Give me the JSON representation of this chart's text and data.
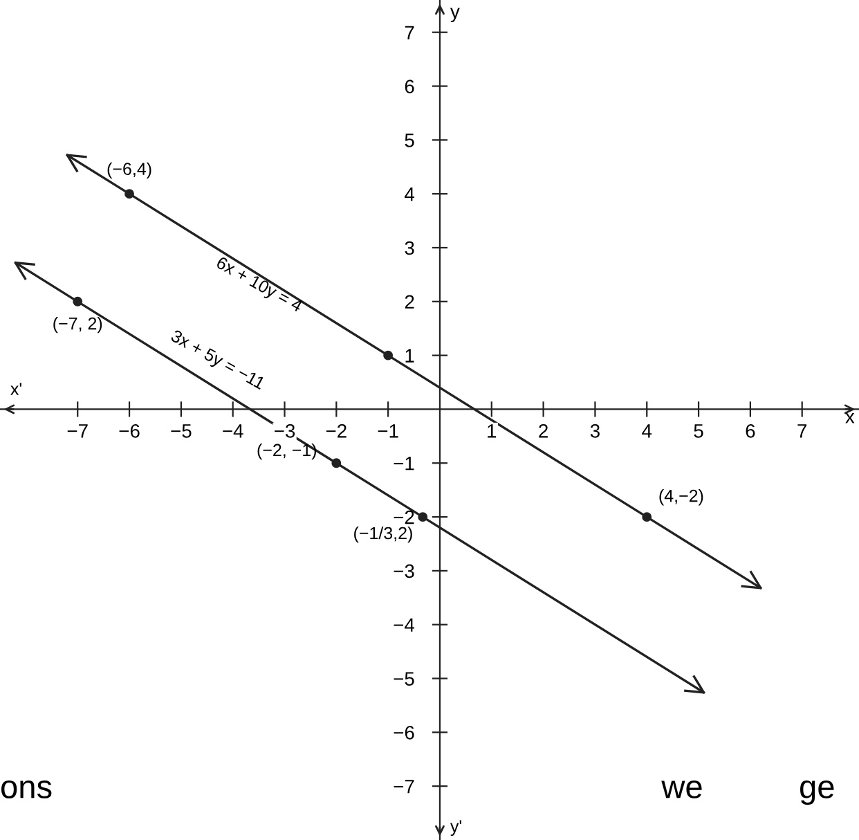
{
  "chart_data": {
    "type": "line",
    "xlabel": "x",
    "ylabel": "y",
    "xlim": [
      -8.5,
      8.1
    ],
    "ylim": [
      -8,
      7.6
    ],
    "xticks": [
      {
        "value": -7,
        "label": "−7"
      },
      {
        "value": -6,
        "label": "−6"
      },
      {
        "value": -5,
        "label": "−5"
      },
      {
        "value": -4,
        "label": "−4"
      },
      {
        "value": -3,
        "label": "−3"
      },
      {
        "value": -2,
        "label": "−2"
      },
      {
        "value": -1,
        "label": "−1"
      },
      1,
      2,
      3,
      4,
      5,
      6,
      7
    ],
    "yticks": [
      {
        "value": -7,
        "label": "−7"
      },
      {
        "value": -6,
        "label": "−6"
      },
      {
        "value": -5,
        "label": "−5"
      },
      {
        "value": -4,
        "label": "−4"
      },
      {
        "value": -3,
        "label": "−3"
      },
      {
        "value": -2,
        "label": "−2"
      },
      {
        "value": -1,
        "label": "−1"
      },
      1,
      2,
      3,
      4,
      5,
      6,
      7
    ],
    "grid": false,
    "legend": false,
    "series": [
      {
        "color": "#222222",
        "x": [
          -7.2,
          -6,
          -1,
          4,
          6.2
        ],
        "values": [
          4.72,
          4,
          1,
          -2,
          -3.32
        ],
        "marker": "none"
      },
      {
        "color": "#222222",
        "x": [
          -8.2,
          -7,
          -2,
          -0.33,
          5.1
        ],
        "values": [
          2.72,
          2,
          -1,
          -2,
          -5.26
        ],
        "marker": "none"
      },
      {
        "type": "scatter",
        "color": "#222222",
        "x": [
          -6,
          -1,
          4,
          -7,
          -2,
          -0.33
        ],
        "values": [
          4,
          1,
          -2,
          2,
          -1,
          -2
        ],
        "marker": "circle"
      }
    ],
    "annotations": [
      "6x + 10y = 4",
      "3x + 5y = −11",
      {
        "text": "(−6,4)",
        "x": -6,
        "y": 4
      },
      {
        "text": "(−7, 2)",
        "x": -7,
        "y": 2
      },
      {
        "text": "(4,−2)",
        "x": 4,
        "y": -2
      },
      {
        "text": "(−2, −1)",
        "x": -2,
        "y": -1
      },
      {
        "text": "(−1/3,2)",
        "x": -0.33,
        "y": -2
      },
      "x'",
      "y'",
      "ons",
      "we",
      "ge"
    ]
  }
}
